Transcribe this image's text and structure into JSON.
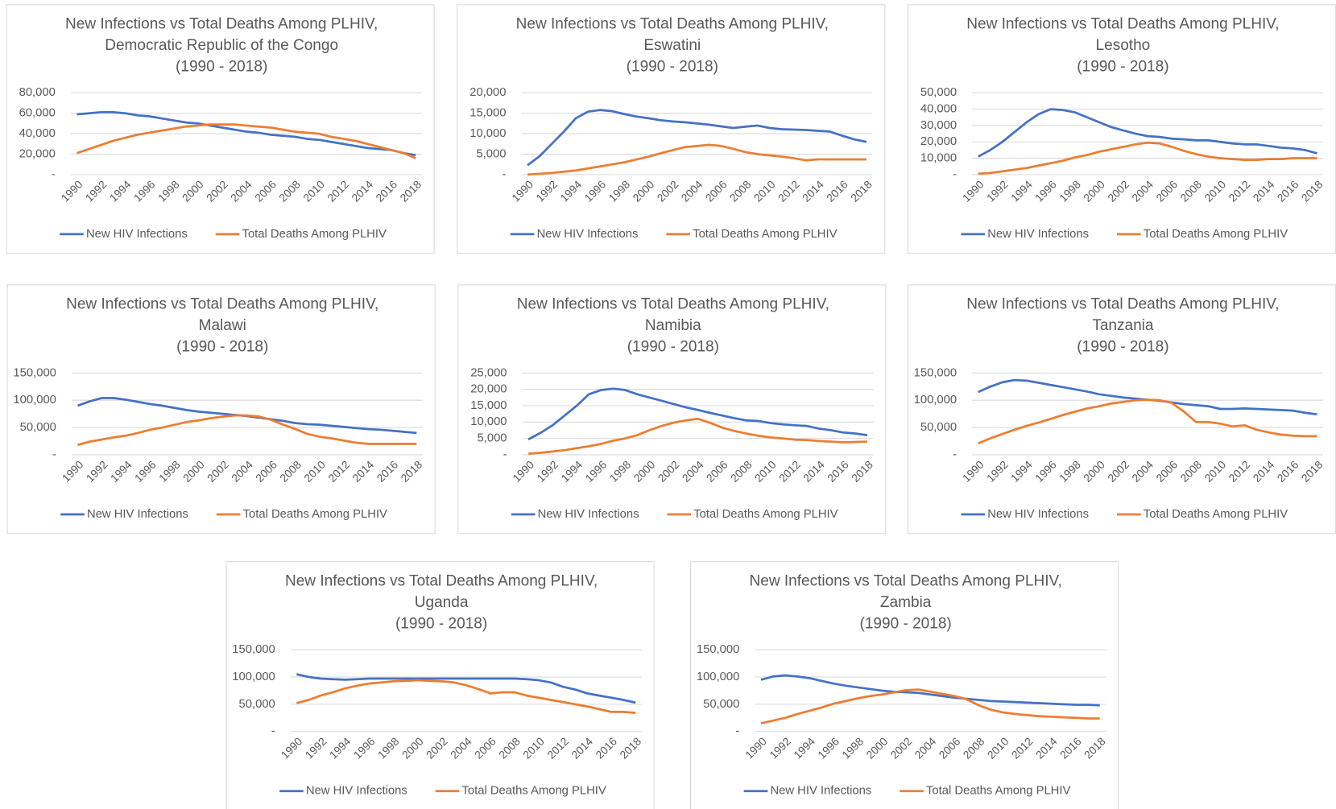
{
  "chart_data": [
    {
      "type": "line",
      "title": [
        "New Infections vs Total Deaths Among PLHIV,",
        "Democratic Republic of the Congo",
        "(1990 - 2018)"
      ],
      "categories": [
        "1990",
        null,
        "1992",
        null,
        "1994",
        null,
        "1996",
        null,
        "1998",
        null,
        "2000",
        null,
        "2002",
        null,
        "2004",
        null,
        "2006",
        null,
        "2008",
        null,
        "2010",
        null,
        "2012",
        null,
        "2014",
        null,
        "2016",
        null,
        "2018"
      ],
      "series": [
        {
          "name": "New HIV Infections",
          "color": "#4472c4",
          "values": [
            59000,
            60000,
            61000,
            61000,
            60000,
            58000,
            57000,
            55000,
            53000,
            51000,
            50000,
            48000,
            46000,
            44000,
            42000,
            41000,
            39000,
            38000,
            37000,
            35000,
            34000,
            32000,
            30000,
            28000,
            26000,
            25000,
            24000,
            21000,
            19000
          ]
        },
        {
          "name": "Total Deaths Among PLHIV",
          "color": "#ed7d31",
          "values": [
            21000,
            25000,
            29000,
            33000,
            36000,
            39000,
            41000,
            43000,
            45000,
            47000,
            48000,
            49000,
            49000,
            49000,
            48000,
            47000,
            46000,
            44000,
            42000,
            41000,
            40000,
            37000,
            35000,
            33000,
            30000,
            27000,
            24000,
            21000,
            16000
          ]
        }
      ],
      "ylim": [
        0,
        80000
      ],
      "yticks": [
        {
          "value": 0,
          "label": "-"
        },
        {
          "value": 20000,
          "label": "20,000"
        },
        {
          "value": 40000,
          "label": "40,000"
        },
        {
          "value": 60000,
          "label": "60,000"
        },
        {
          "value": 80000,
          "label": "80,000"
        }
      ],
      "grid": true,
      "legend": "bottom"
    },
    {
      "type": "line",
      "title": [
        "New Infections vs Total Deaths Among PLHIV,",
        "Eswatini",
        "(1990 - 2018)"
      ],
      "categories": [
        "1990",
        null,
        "1992",
        null,
        "1994",
        null,
        "1996",
        null,
        "1998",
        null,
        "2000",
        null,
        "2002",
        null,
        "2004",
        null,
        "2006",
        null,
        "2008",
        null,
        "2010",
        null,
        "2012",
        null,
        "2014",
        null,
        "2016",
        null,
        "2018"
      ],
      "series": [
        {
          "name": "New HIV Infections",
          "color": "#4472c4",
          "values": [
            2300,
            4500,
            7500,
            10500,
            13800,
            15400,
            15800,
            15500,
            14800,
            14200,
            13800,
            13300,
            13000,
            12800,
            12500,
            12200,
            11800,
            11400,
            11700,
            12000,
            11400,
            11100,
            11000,
            10900,
            10700,
            10500,
            9500,
            8600,
            8000
          ]
        },
        {
          "name": "Total Deaths Among PLHIV",
          "color": "#ed7d31",
          "values": [
            0,
            200,
            400,
            700,
            1000,
            1500,
            2000,
            2500,
            3000,
            3700,
            4400,
            5200,
            6000,
            6700,
            7000,
            7300,
            7000,
            6300,
            5500,
            5000,
            4700,
            4400,
            4000,
            3500,
            3700,
            3700,
            3700,
            3700,
            3700
          ]
        }
      ],
      "ylim": [
        0,
        20000
      ],
      "yticks": [
        {
          "value": 0,
          "label": "-"
        },
        {
          "value": 5000,
          "label": "5,000"
        },
        {
          "value": 10000,
          "label": "10,000"
        },
        {
          "value": 15000,
          "label": "15,000"
        },
        {
          "value": 20000,
          "label": "20,000"
        }
      ],
      "grid": true,
      "legend": "bottom"
    },
    {
      "type": "line",
      "title": [
        "New Infections vs Total Deaths Among PLHIV,",
        "Lesotho",
        "(1990 - 2018)"
      ],
      "categories": [
        "1990",
        null,
        "1992",
        null,
        "1994",
        null,
        "1996",
        null,
        "1998",
        null,
        "2000",
        null,
        "2002",
        null,
        "2004",
        null,
        "2006",
        null,
        "2008",
        null,
        "2010",
        null,
        "2012",
        null,
        "2014",
        null,
        "2016",
        null,
        "2018"
      ],
      "series": [
        {
          "name": "New HIV Infections",
          "color": "#4472c4",
          "values": [
            11000,
            15000,
            20000,
            26000,
            32000,
            37000,
            40000,
            39500,
            38000,
            35000,
            32000,
            29000,
            27000,
            25000,
            23500,
            23000,
            22000,
            21500,
            21000,
            21000,
            20000,
            19000,
            18500,
            18500,
            17500,
            16500,
            16000,
            15000,
            13000
          ]
        },
        {
          "name": "Total Deaths Among PLHIV",
          "color": "#ed7d31",
          "values": [
            500,
            1000,
            2000,
            3000,
            4000,
            5500,
            7000,
            8500,
            10500,
            12000,
            14000,
            15500,
            17000,
            18500,
            19500,
            19000,
            17000,
            14500,
            12500,
            11000,
            10000,
            9500,
            9000,
            9000,
            9500,
            9500,
            10000,
            10000,
            10000
          ]
        }
      ],
      "ylim": [
        0,
        50000
      ],
      "yticks": [
        {
          "value": 0,
          "label": "-"
        },
        {
          "value": 10000,
          "label": "10,000"
        },
        {
          "value": 20000,
          "label": "20,000"
        },
        {
          "value": 30000,
          "label": "30,000"
        },
        {
          "value": 40000,
          "label": "40,000"
        },
        {
          "value": 50000,
          "label": "50,000"
        }
      ],
      "grid": true,
      "legend": "bottom"
    },
    {
      "type": "line",
      "title": [
        "New Infections vs Total Deaths Among PLHIV,",
        "Malawi",
        "(1990 - 2018)"
      ],
      "categories": [
        "1990",
        null,
        "1992",
        null,
        "1994",
        null,
        "1996",
        null,
        "1998",
        null,
        "2000",
        null,
        "2002",
        null,
        "2004",
        null,
        "2006",
        null,
        "2008",
        null,
        "2010",
        null,
        "2012",
        null,
        "2014",
        null,
        "2016",
        null,
        "2018"
      ],
      "series": [
        {
          "name": "New HIV Infections",
          "color": "#4472c4",
          "values": [
            90000,
            98000,
            104000,
            104000,
            101000,
            97000,
            93000,
            90000,
            86000,
            82000,
            79000,
            77000,
            75000,
            73000,
            71000,
            68000,
            65000,
            62000,
            58000,
            56000,
            55000,
            53000,
            51000,
            49000,
            47000,
            46000,
            44000,
            42000,
            40000
          ]
        },
        {
          "name": "Total Deaths Among PLHIV",
          "color": "#ed7d31",
          "values": [
            18000,
            24000,
            28000,
            32000,
            35000,
            40000,
            46000,
            50000,
            55000,
            60000,
            63000,
            67000,
            70000,
            72000,
            72000,
            70000,
            64000,
            55000,
            47000,
            38000,
            33000,
            30000,
            26000,
            22000,
            20000,
            20000,
            20000,
            20000,
            20000
          ]
        }
      ],
      "ylim": [
        0,
        150000
      ],
      "yticks": [
        {
          "value": 0,
          "label": "-"
        },
        {
          "value": 50000,
          "label": "50,000"
        },
        {
          "value": 100000,
          "label": "100,000"
        },
        {
          "value": 150000,
          "label": "150,000"
        }
      ],
      "grid": true,
      "legend": "bottom"
    },
    {
      "type": "line",
      "title": [
        "New Infections vs Total Deaths Among PLHIV,",
        "Namibia",
        "(1990 - 2018)"
      ],
      "categories": [
        "1990",
        null,
        "1992",
        null,
        "1994",
        null,
        "1996",
        null,
        "1998",
        null,
        "2000",
        null,
        "2002",
        null,
        "2004",
        null,
        "2006",
        null,
        "2008",
        null,
        "2010",
        null,
        "2012",
        null,
        "2014",
        null,
        "2016",
        null,
        "2018"
      ],
      "series": [
        {
          "name": "New HIV Infections",
          "color": "#4472c4",
          "values": [
            4700,
            6700,
            9000,
            12000,
            15000,
            18500,
            19800,
            20200,
            19800,
            18500,
            17500,
            16500,
            15500,
            14500,
            13700,
            12800,
            12000,
            11200,
            10500,
            10300,
            9700,
            9300,
            9000,
            8800,
            8000,
            7500,
            6800,
            6500,
            6000
          ]
        },
        {
          "name": "Total Deaths Among PLHIV",
          "color": "#ed7d31",
          "values": [
            300,
            600,
            1000,
            1400,
            2000,
            2600,
            3300,
            4300,
            5000,
            6000,
            7500,
            8800,
            9800,
            10500,
            11000,
            9800,
            8300,
            7300,
            6500,
            5800,
            5300,
            5000,
            4600,
            4500,
            4200,
            4000,
            3800,
            3900,
            4000
          ]
        }
      ],
      "ylim": [
        0,
        25000
      ],
      "yticks": [
        {
          "value": 0,
          "label": "-"
        },
        {
          "value": 5000,
          "label": "5,000"
        },
        {
          "value": 10000,
          "label": "10,000"
        },
        {
          "value": 15000,
          "label": "15,000"
        },
        {
          "value": 20000,
          "label": "20,000"
        },
        {
          "value": 25000,
          "label": "25,000"
        }
      ],
      "grid": true,
      "legend": "bottom"
    },
    {
      "type": "line",
      "title": [
        "New Infections vs Total Deaths Among PLHIV,",
        "Tanzania",
        "(1990 - 2018)"
      ],
      "categories": [
        "1990",
        null,
        "1992",
        null,
        "1994",
        null,
        "1996",
        null,
        "1998",
        null,
        "2000",
        null,
        "2002",
        null,
        "2004",
        null,
        "2006",
        null,
        "2008",
        null,
        "2010",
        null,
        "2012",
        null,
        "2014",
        null,
        "2016",
        null,
        "2018"
      ],
      "series": [
        {
          "name": "New HIV Infections",
          "color": "#4472c4",
          "values": [
            115000,
            125000,
            133000,
            137000,
            136000,
            132000,
            128000,
            124000,
            120000,
            116000,
            111000,
            108000,
            105000,
            103000,
            101000,
            99000,
            96000,
            93000,
            91000,
            89000,
            84000,
            84000,
            85000,
            84000,
            83000,
            82000,
            81000,
            77000,
            74000
          ]
        },
        {
          "name": "Total Deaths Among PLHIV",
          "color": "#ed7d31",
          "values": [
            21000,
            30000,
            38000,
            46000,
            53000,
            59000,
            66000,
            73000,
            79000,
            85000,
            89000,
            94000,
            97000,
            100000,
            101000,
            100000,
            95000,
            79000,
            60000,
            60000,
            57000,
            52000,
            54000,
            46000,
            41000,
            37000,
            35000,
            34000,
            34000
          ]
        }
      ],
      "ylim": [
        0,
        150000
      ],
      "yticks": [
        {
          "value": 0,
          "label": "-"
        },
        {
          "value": 50000,
          "label": "50,000"
        },
        {
          "value": 100000,
          "label": "100,000"
        },
        {
          "value": 150000,
          "label": "150,000"
        }
      ],
      "grid": true,
      "legend": "bottom"
    },
    {
      "type": "line",
      "title": [
        "New Infections vs Total Deaths Among PLHIV,",
        "Uganda",
        "(1990 - 2018)"
      ],
      "categories": [
        "1990",
        null,
        "1992",
        null,
        "1994",
        null,
        "1996",
        null,
        "1998",
        null,
        "2000",
        null,
        "2002",
        null,
        "2004",
        null,
        "2006",
        null,
        "2008",
        null,
        "2010",
        null,
        "2012",
        null,
        "2014",
        null,
        "2016",
        null,
        "2018"
      ],
      "series": [
        {
          "name": "New HIV Infections",
          "color": "#4472c4",
          "values": [
            105000,
            100000,
            97000,
            96000,
            95000,
            96000,
            97000,
            97000,
            97000,
            97000,
            97000,
            97000,
            97000,
            97000,
            97000,
            97000,
            97000,
            97000,
            97000,
            96000,
            94000,
            90000,
            82000,
            77000,
            70000,
            66000,
            62000,
            58000,
            53000
          ]
        },
        {
          "name": "Total Deaths Among PLHIV",
          "color": "#ed7d31",
          "values": [
            52000,
            58000,
            66000,
            72000,
            79000,
            84000,
            88000,
            90000,
            92000,
            93000,
            94000,
            93000,
            92000,
            90000,
            85000,
            78000,
            70000,
            72000,
            72000,
            66000,
            62000,
            58000,
            54000,
            50000,
            46000,
            41000,
            36000,
            36000,
            34000
          ]
        }
      ],
      "ylim": [
        0,
        150000
      ],
      "yticks": [
        {
          "value": 0,
          "label": "-"
        },
        {
          "value": 50000,
          "label": "50,000"
        },
        {
          "value": 100000,
          "label": "100,000"
        },
        {
          "value": 150000,
          "label": "150,000"
        }
      ],
      "grid": true,
      "legend": "bottom"
    },
    {
      "type": "line",
      "title": [
        "New Infections vs Total Deaths Among PLHIV,",
        "Zambia",
        "(1990 - 2018)"
      ],
      "categories": [
        "1990",
        null,
        "1992",
        null,
        "1994",
        null,
        "1996",
        null,
        "1998",
        null,
        "2000",
        null,
        "2002",
        null,
        "2004",
        null,
        "2006",
        null,
        "2008",
        null,
        "2010",
        null,
        "2012",
        null,
        "2014",
        null,
        "2016",
        null,
        "2018"
      ],
      "series": [
        {
          "name": "New HIV Infections",
          "color": "#4472c4",
          "values": [
            95000,
            101000,
            103000,
            101000,
            98000,
            93000,
            88000,
            84000,
            81000,
            78000,
            75000,
            73000,
            72000,
            71000,
            68000,
            65000,
            62000,
            60000,
            58000,
            56000,
            55000,
            54000,
            53000,
            52000,
            51000,
            50000,
            49000,
            49000,
            48000
          ]
        },
        {
          "name": "Total Deaths Among PLHIV",
          "color": "#ed7d31",
          "values": [
            15000,
            20000,
            25000,
            32000,
            38000,
            44000,
            51000,
            56000,
            61000,
            65000,
            68000,
            72000,
            76000,
            77000,
            73000,
            69000,
            65000,
            59000,
            48000,
            40000,
            35000,
            32000,
            30000,
            28000,
            27000,
            26000,
            25000,
            24000,
            24000
          ]
        }
      ],
      "ylim": [
        0,
        150000
      ],
      "yticks": [
        {
          "value": 0,
          "label": "-"
        },
        {
          "value": 50000,
          "label": "50,000"
        },
        {
          "value": 100000,
          "label": "100,000"
        },
        {
          "value": 150000,
          "label": "150,000"
        }
      ],
      "grid": true,
      "legend": "bottom"
    }
  ]
}
